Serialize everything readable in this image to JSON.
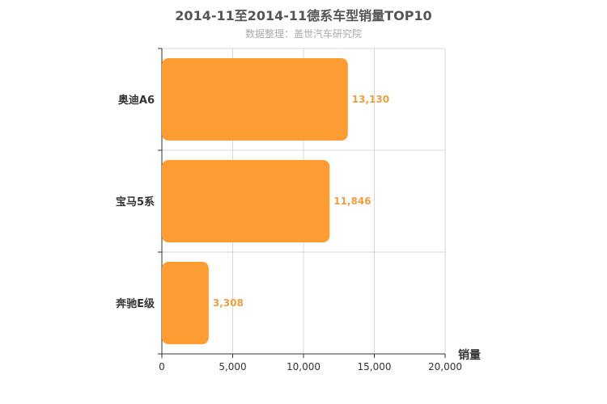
{
  "chart_data": {
    "type": "bar",
    "orientation": "horizontal",
    "title": "2014-11至2014-11德系车型销量TOP10",
    "subtitle": "数据整理：盖世汽车研究院",
    "categories": [
      "奥迪A6",
      "宝马5系",
      "奔驰E级"
    ],
    "values": [
      13130,
      11846,
      3308
    ],
    "value_labels": [
      "13,130",
      "11,846",
      "3,308"
    ],
    "xlabel": "销量",
    "ylabel": "",
    "xlim": [
      0,
      20000
    ],
    "x_ticks": [
      0,
      5000,
      10000,
      15000,
      20000
    ],
    "x_tick_labels": [
      "0",
      "5,000",
      "10,000",
      "15,000",
      "20,000"
    ],
    "grid": true,
    "colors": {
      "bar": "#ff9d35",
      "value_label": "#e9a045",
      "axis": "#333333",
      "grid": "#d9d9d9",
      "category_label": "#333333",
      "title": "#555555",
      "subtitle": "#aaaaaa"
    }
  }
}
